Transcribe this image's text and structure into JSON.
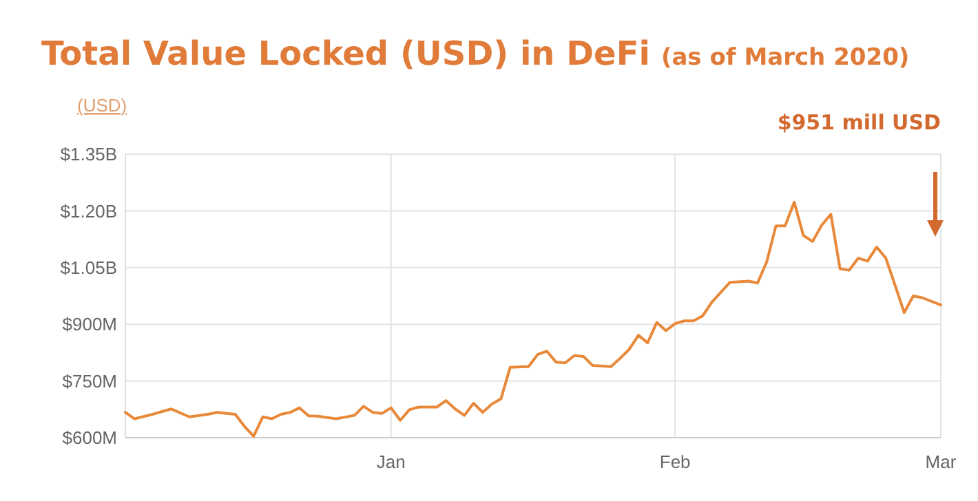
{
  "chart_data": {
    "type": "line",
    "title": "Total Value Locked (USD) in DeFi",
    "subtitle": "(as of March 2020)",
    "ylabel": "(USD)",
    "annotations": [
      "$951 mill USD"
    ],
    "x": [
      "2019-12-03",
      "2019-12-04",
      "2019-12-06",
      "2019-12-08",
      "2019-12-10",
      "2019-12-12",
      "2019-12-13",
      "2019-12-15",
      "2019-12-16",
      "2019-12-17",
      "2019-12-18",
      "2019-12-19",
      "2019-12-20",
      "2019-12-21",
      "2019-12-22",
      "2019-12-23",
      "2019-12-24",
      "2019-12-26",
      "2019-12-28",
      "2019-12-29",
      "2019-12-30",
      "2019-12-31",
      "2020-01-01",
      "2020-01-02",
      "2020-01-03",
      "2020-01-04",
      "2020-01-06",
      "2020-01-07",
      "2020-01-08",
      "2020-01-09",
      "2020-01-10",
      "2020-01-11",
      "2020-01-12",
      "2020-01-13",
      "2020-01-14",
      "2020-01-16",
      "2020-01-17",
      "2020-01-18",
      "2020-01-19",
      "2020-01-20",
      "2020-01-21",
      "2020-01-22",
      "2020-01-23",
      "2020-01-25",
      "2020-01-26",
      "2020-01-27",
      "2020-01-28",
      "2020-01-29",
      "2020-01-30",
      "2020-01-31",
      "2020-02-01",
      "2020-02-02",
      "2020-02-03",
      "2020-02-04",
      "2020-02-05",
      "2020-02-06",
      "2020-02-07",
      "2020-02-09",
      "2020-02-10",
      "2020-02-11",
      "2020-02-12",
      "2020-02-13",
      "2020-02-14",
      "2020-02-15",
      "2020-02-16",
      "2020-02-17",
      "2020-02-18",
      "2020-02-19",
      "2020-02-20",
      "2020-02-21",
      "2020-02-22",
      "2020-02-23",
      "2020-02-24",
      "2020-02-25",
      "2020-02-26",
      "2020-02-27",
      "2020-02-28",
      "2020-03-01"
    ],
    "series": [
      {
        "color": "#e8893a",
        "values": [
          667000000,
          650000000,
          662000000,
          676000000,
          655000000,
          662000000,
          667000000,
          662000000,
          630000000,
          604000000,
          655000000,
          650000000,
          662000000,
          667000000,
          679000000,
          658000000,
          657000000,
          650000000,
          659000000,
          683000000,
          667000000,
          664000000,
          679000000,
          646000000,
          674000000,
          681000000,
          681000000,
          698000000,
          676000000,
          659000000,
          691000000,
          667000000,
          689000000,
          703000000,
          786000000,
          788000000,
          820000000,
          829000000,
          800000000,
          798000000,
          817000000,
          815000000,
          791000000,
          788000000,
          810000000,
          834000000,
          871000000,
          851000000,
          905000000,
          883000000,
          902000000,
          909000000,
          909000000,
          922000000,
          958000000,
          985000000,
          1011000000,
          1014000000,
          1009000000,
          1065000000,
          1160000000,
          1160000000,
          1223000000,
          1135000000,
          1119000000,
          1162000000,
          1191000000,
          1047000000,
          1043000000,
          1075000000,
          1067000000,
          1104000000,
          1075000000,
          1004000000,
          931000000,
          975000000,
          970000000,
          951000000
        ]
      }
    ],
    "xlim": [
      "2019-12-03",
      "2020-03-01"
    ],
    "xticks": [
      {
        "value": "2020-01-01",
        "label": "Jan"
      },
      {
        "value": "2020-02-01",
        "label": "Feb"
      },
      {
        "value": "2020-03-01",
        "label": "Mar"
      }
    ],
    "ylim": [
      600000000,
      1350000000
    ],
    "yticks": [
      {
        "value": 600000000,
        "label": "$600M"
      },
      {
        "value": 750000000,
        "label": "$750M"
      },
      {
        "value": 900000000,
        "label": "$900M"
      },
      {
        "value": 1050000000,
        "label": "$1.05B"
      },
      {
        "value": 1200000000,
        "label": "$1.20B"
      },
      {
        "value": 1350000000,
        "label": "$1.35B"
      }
    ],
    "grid": true,
    "marker": "none",
    "line_style": "solid"
  }
}
